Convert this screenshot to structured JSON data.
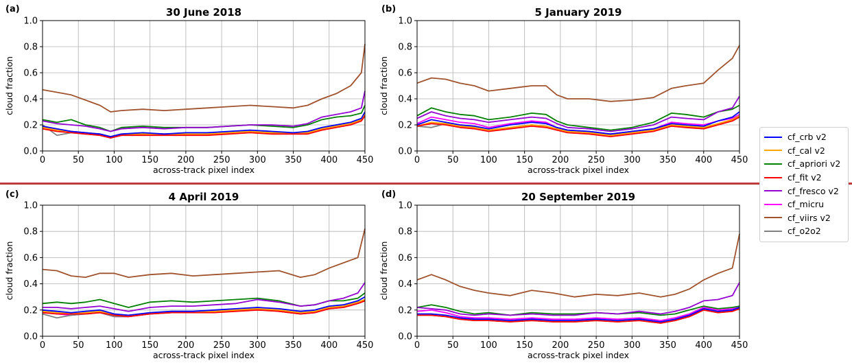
{
  "legend": [
    {
      "name": "cf_crb v2",
      "color": "#0000ff"
    },
    {
      "name": "cf_cal v2",
      "color": "#ffa500"
    },
    {
      "name": "cf_apriori v2",
      "color": "#008000"
    },
    {
      "name": "cf_fit v2",
      "color": "#ff0000"
    },
    {
      "name": "cf_fresco v2",
      "color": "#9400d3"
    },
    {
      "name": "cf_micru",
      "color": "#ff00ff"
    },
    {
      "name": "cf_viirs v2",
      "color": "#a0522d"
    },
    {
      "name": "cf_o2o2",
      "color": "#808080"
    }
  ],
  "chart_data": [
    {
      "type": "line",
      "panel": "(a)",
      "title": "30 June 2018",
      "xlabel": "across-track pixel index",
      "ylabel": "cloud fraction",
      "xlim": [
        0,
        450
      ],
      "ylim": [
        0,
        1.0
      ],
      "xticks": [
        0,
        50,
        100,
        150,
        200,
        250,
        300,
        350,
        400,
        450
      ],
      "yticks": [
        0.0,
        0.2,
        0.4,
        0.6,
        0.8,
        1.0
      ],
      "grid": true,
      "x": [
        0,
        20,
        40,
        60,
        80,
        95,
        110,
        140,
        170,
        200,
        230,
        260,
        290,
        320,
        350,
        370,
        390,
        410,
        430,
        445,
        450
      ],
      "series": [
        {
          "name": "cf_crb v2",
          "values": [
            0.19,
            0.17,
            0.15,
            0.14,
            0.13,
            0.11,
            0.13,
            0.14,
            0.13,
            0.14,
            0.14,
            0.15,
            0.16,
            0.15,
            0.14,
            0.15,
            0.18,
            0.2,
            0.22,
            0.25,
            0.3
          ]
        },
        {
          "name": "cf_cal v2",
          "values": [
            0.18,
            0.16,
            0.15,
            0.14,
            0.13,
            0.11,
            0.13,
            0.13,
            0.13,
            0.13,
            0.13,
            0.14,
            0.15,
            0.14,
            0.14,
            0.14,
            0.17,
            0.19,
            0.21,
            0.24,
            0.28
          ]
        },
        {
          "name": "cf_apriori v2",
          "values": [
            0.24,
            0.22,
            0.24,
            0.2,
            0.18,
            0.15,
            0.18,
            0.19,
            0.18,
            0.18,
            0.18,
            0.19,
            0.2,
            0.19,
            0.18,
            0.2,
            0.24,
            0.26,
            0.27,
            0.29,
            0.35
          ]
        },
        {
          "name": "cf_fit v2",
          "values": [
            0.17,
            0.15,
            0.14,
            0.13,
            0.12,
            0.1,
            0.12,
            0.12,
            0.12,
            0.12,
            0.12,
            0.13,
            0.14,
            0.13,
            0.13,
            0.13,
            0.16,
            0.18,
            0.2,
            0.23,
            0.27
          ]
        },
        {
          "name": "cf_fresco v2",
          "values": [
            0.23,
            0.21,
            0.2,
            0.19,
            0.17,
            0.15,
            0.17,
            0.18,
            0.17,
            0.18,
            0.18,
            0.19,
            0.2,
            0.2,
            0.19,
            0.21,
            0.26,
            0.28,
            0.3,
            0.33,
            0.46
          ]
        },
        {
          "name": "cf_micru",
          "values": [
            0.18,
            0.16,
            0.15,
            0.14,
            0.13,
            0.1,
            0.12,
            0.13,
            0.13,
            0.13,
            0.13,
            0.14,
            0.15,
            0.14,
            0.14,
            0.14,
            0.17,
            0.19,
            0.21,
            0.24,
            0.28
          ]
        },
        {
          "name": "cf_viirs v2",
          "values": [
            0.47,
            0.45,
            0.43,
            0.39,
            0.35,
            0.3,
            0.31,
            0.32,
            0.31,
            0.32,
            0.33,
            0.34,
            0.35,
            0.34,
            0.33,
            0.35,
            0.4,
            0.44,
            0.5,
            0.6,
            0.82
          ]
        },
        {
          "name": "cf_o2o2",
          "values": [
            0.2,
            0.12,
            0.14,
            0.13,
            0.12,
            0.1,
            0.12,
            0.13,
            0.13,
            0.13,
            0.13,
            0.14,
            0.15,
            0.14,
            0.14,
            0.14,
            0.17,
            0.19,
            0.21,
            0.23,
            0.27
          ]
        }
      ]
    },
    {
      "type": "line",
      "panel": "(b)",
      "title": "5 January 2019",
      "xlabel": "across-track pixel index",
      "ylabel": "cloud fraction",
      "xlim": [
        0,
        450
      ],
      "ylim": [
        0,
        1.0
      ],
      "xticks": [
        0,
        50,
        100,
        150,
        200,
        250,
        300,
        350,
        400,
        450
      ],
      "yticks": [
        0.0,
        0.2,
        0.4,
        0.6,
        0.8,
        1.0
      ],
      "grid": true,
      "x": [
        0,
        20,
        40,
        60,
        80,
        100,
        130,
        160,
        180,
        195,
        210,
        240,
        270,
        300,
        330,
        355,
        375,
        400,
        420,
        440,
        450
      ],
      "series": [
        {
          "name": "cf_crb v2",
          "values": [
            0.2,
            0.24,
            0.22,
            0.2,
            0.19,
            0.17,
            0.2,
            0.22,
            0.21,
            0.18,
            0.16,
            0.15,
            0.13,
            0.15,
            0.17,
            0.21,
            0.2,
            0.19,
            0.23,
            0.26,
            0.3
          ]
        },
        {
          "name": "cf_cal v2",
          "values": [
            0.19,
            0.22,
            0.21,
            0.19,
            0.18,
            0.16,
            0.18,
            0.2,
            0.19,
            0.17,
            0.15,
            0.14,
            0.12,
            0.14,
            0.16,
            0.2,
            0.19,
            0.18,
            0.21,
            0.24,
            0.27
          ]
        },
        {
          "name": "cf_apriori v2",
          "values": [
            0.27,
            0.33,
            0.3,
            0.28,
            0.27,
            0.24,
            0.26,
            0.29,
            0.28,
            0.23,
            0.2,
            0.18,
            0.16,
            0.18,
            0.22,
            0.29,
            0.28,
            0.26,
            0.3,
            0.32,
            0.35
          ]
        },
        {
          "name": "cf_fit v2",
          "values": [
            0.19,
            0.21,
            0.2,
            0.18,
            0.17,
            0.15,
            0.17,
            0.19,
            0.18,
            0.16,
            0.14,
            0.13,
            0.11,
            0.13,
            0.15,
            0.19,
            0.18,
            0.17,
            0.2,
            0.23,
            0.26
          ]
        },
        {
          "name": "cf_fresco v2",
          "values": [
            0.25,
            0.3,
            0.27,
            0.25,
            0.24,
            0.22,
            0.24,
            0.26,
            0.25,
            0.21,
            0.18,
            0.17,
            0.15,
            0.17,
            0.2,
            0.26,
            0.25,
            0.24,
            0.3,
            0.33,
            0.42
          ]
        },
        {
          "name": "cf_micru",
          "values": [
            0.21,
            0.26,
            0.24,
            0.22,
            0.21,
            0.18,
            0.21,
            0.23,
            0.22,
            0.18,
            0.16,
            0.15,
            0.13,
            0.15,
            0.17,
            0.22,
            0.21,
            0.2,
            0.23,
            0.25,
            0.28
          ]
        },
        {
          "name": "cf_viirs v2",
          "values": [
            0.52,
            0.56,
            0.55,
            0.52,
            0.5,
            0.46,
            0.48,
            0.5,
            0.5,
            0.43,
            0.4,
            0.4,
            0.38,
            0.39,
            0.41,
            0.48,
            0.5,
            0.52,
            0.62,
            0.71,
            0.81
          ]
        },
        {
          "name": "cf_o2o2",
          "values": [
            0.19,
            0.18,
            0.21,
            0.19,
            0.18,
            0.16,
            0.18,
            0.2,
            0.19,
            0.17,
            0.15,
            0.14,
            0.12,
            0.14,
            0.16,
            0.2,
            0.19,
            0.17,
            0.21,
            0.24,
            0.27
          ]
        }
      ]
    },
    {
      "type": "line",
      "panel": "(c)",
      "title": "4 April 2019",
      "xlabel": "across-track pixel index",
      "ylabel": "cloud fraction",
      "xlim": [
        0,
        450
      ],
      "ylim": [
        0,
        1.0
      ],
      "xticks": [
        0,
        50,
        100,
        150,
        200,
        250,
        300,
        350,
        400,
        450
      ],
      "yticks": [
        0.0,
        0.2,
        0.4,
        0.6,
        0.8,
        1.0
      ],
      "grid": true,
      "x": [
        0,
        20,
        40,
        60,
        80,
        100,
        120,
        150,
        180,
        210,
        240,
        270,
        300,
        330,
        360,
        380,
        400,
        420,
        440,
        450
      ],
      "series": [
        {
          "name": "cf_crb v2",
          "values": [
            0.2,
            0.19,
            0.18,
            0.19,
            0.2,
            0.17,
            0.16,
            0.18,
            0.19,
            0.19,
            0.2,
            0.21,
            0.22,
            0.21,
            0.19,
            0.2,
            0.23,
            0.24,
            0.27,
            0.3
          ]
        },
        {
          "name": "cf_cal v2",
          "values": [
            0.19,
            0.18,
            0.17,
            0.18,
            0.19,
            0.16,
            0.16,
            0.17,
            0.18,
            0.18,
            0.19,
            0.2,
            0.21,
            0.2,
            0.18,
            0.19,
            0.22,
            0.23,
            0.26,
            0.28
          ]
        },
        {
          "name": "cf_apriori v2",
          "values": [
            0.25,
            0.26,
            0.25,
            0.26,
            0.28,
            0.25,
            0.22,
            0.26,
            0.27,
            0.26,
            0.27,
            0.28,
            0.29,
            0.27,
            0.23,
            0.24,
            0.27,
            0.27,
            0.29,
            0.33
          ]
        },
        {
          "name": "cf_fit v2",
          "values": [
            0.18,
            0.17,
            0.17,
            0.17,
            0.18,
            0.16,
            0.15,
            0.17,
            0.18,
            0.18,
            0.18,
            0.19,
            0.2,
            0.19,
            0.17,
            0.18,
            0.21,
            0.22,
            0.25,
            0.27
          ]
        },
        {
          "name": "cf_fresco v2",
          "values": [
            0.22,
            0.22,
            0.21,
            0.22,
            0.23,
            0.21,
            0.19,
            0.22,
            0.23,
            0.23,
            0.24,
            0.25,
            0.28,
            0.26,
            0.23,
            0.24,
            0.27,
            0.29,
            0.33,
            0.41
          ]
        },
        {
          "name": "cf_micru",
          "values": [
            0.18,
            0.17,
            0.16,
            0.17,
            0.18,
            0.15,
            0.15,
            0.17,
            0.18,
            0.18,
            0.19,
            0.2,
            0.21,
            0.19,
            0.17,
            0.18,
            0.21,
            0.22,
            0.25,
            0.27
          ]
        },
        {
          "name": "cf_viirs v2",
          "values": [
            0.51,
            0.5,
            0.46,
            0.45,
            0.48,
            0.48,
            0.45,
            0.47,
            0.48,
            0.46,
            0.47,
            0.48,
            0.49,
            0.5,
            0.45,
            0.47,
            0.52,
            0.56,
            0.6,
            0.82
          ]
        },
        {
          "name": "cf_o2o2",
          "values": [
            0.17,
            0.14,
            0.16,
            0.17,
            0.18,
            0.15,
            0.15,
            0.17,
            0.18,
            0.18,
            0.19,
            0.2,
            0.21,
            0.19,
            0.17,
            0.18,
            0.21,
            0.22,
            0.25,
            0.27
          ]
        }
      ]
    },
    {
      "type": "line",
      "panel": "(d)",
      "title": "20 September 2019",
      "xlabel": "across-track pixel index",
      "ylabel": "cloud fraction",
      "xlim": [
        0,
        450
      ],
      "ylim": [
        0,
        1.0
      ],
      "xticks": [
        0,
        50,
        100,
        150,
        200,
        250,
        300,
        350,
        400,
        450
      ],
      "yticks": [
        0.0,
        0.2,
        0.4,
        0.6,
        0.8,
        1.0
      ],
      "grid": true,
      "x": [
        0,
        20,
        40,
        60,
        80,
        100,
        130,
        160,
        190,
        220,
        250,
        280,
        310,
        340,
        360,
        380,
        400,
        420,
        440,
        450
      ],
      "series": [
        {
          "name": "cf_crb v2",
          "values": [
            0.17,
            0.17,
            0.16,
            0.14,
            0.13,
            0.13,
            0.12,
            0.13,
            0.12,
            0.12,
            0.13,
            0.12,
            0.13,
            0.11,
            0.13,
            0.16,
            0.21,
            0.19,
            0.2,
            0.22
          ]
        },
        {
          "name": "cf_cal v2",
          "values": [
            0.16,
            0.16,
            0.15,
            0.13,
            0.12,
            0.12,
            0.11,
            0.12,
            0.11,
            0.11,
            0.12,
            0.11,
            0.12,
            0.1,
            0.12,
            0.15,
            0.2,
            0.18,
            0.19,
            0.21
          ]
        },
        {
          "name": "cf_apriori v2",
          "values": [
            0.22,
            0.24,
            0.22,
            0.19,
            0.17,
            0.18,
            0.16,
            0.18,
            0.17,
            0.17,
            0.18,
            0.17,
            0.18,
            0.16,
            0.17,
            0.2,
            0.23,
            0.21,
            0.22,
            0.23
          ]
        },
        {
          "name": "cf_fit v2",
          "values": [
            0.16,
            0.16,
            0.15,
            0.13,
            0.12,
            0.12,
            0.11,
            0.12,
            0.11,
            0.11,
            0.12,
            0.11,
            0.12,
            0.1,
            0.12,
            0.15,
            0.2,
            0.18,
            0.19,
            0.21
          ]
        },
        {
          "name": "cf_fresco v2",
          "values": [
            0.22,
            0.21,
            0.2,
            0.17,
            0.16,
            0.17,
            0.16,
            0.17,
            0.16,
            0.16,
            0.18,
            0.17,
            0.19,
            0.17,
            0.19,
            0.22,
            0.27,
            0.28,
            0.31,
            0.41
          ]
        },
        {
          "name": "cf_micru",
          "values": [
            0.19,
            0.2,
            0.18,
            0.15,
            0.14,
            0.14,
            0.13,
            0.14,
            0.13,
            0.13,
            0.14,
            0.13,
            0.14,
            0.12,
            0.14,
            0.17,
            0.22,
            0.2,
            0.21,
            0.22
          ]
        },
        {
          "name": "cf_viirs v2",
          "values": [
            0.43,
            0.47,
            0.43,
            0.38,
            0.35,
            0.33,
            0.31,
            0.35,
            0.33,
            0.3,
            0.32,
            0.31,
            0.33,
            0.3,
            0.32,
            0.36,
            0.43,
            0.48,
            0.52,
            0.78
          ]
        },
        {
          "name": "cf_o2o2",
          "values": [
            0.16,
            0.16,
            0.15,
            0.13,
            0.12,
            0.12,
            0.11,
            0.12,
            0.11,
            0.11,
            0.12,
            0.11,
            0.12,
            0.1,
            0.12,
            0.15,
            0.2,
            0.18,
            0.19,
            0.21
          ]
        }
      ]
    }
  ]
}
